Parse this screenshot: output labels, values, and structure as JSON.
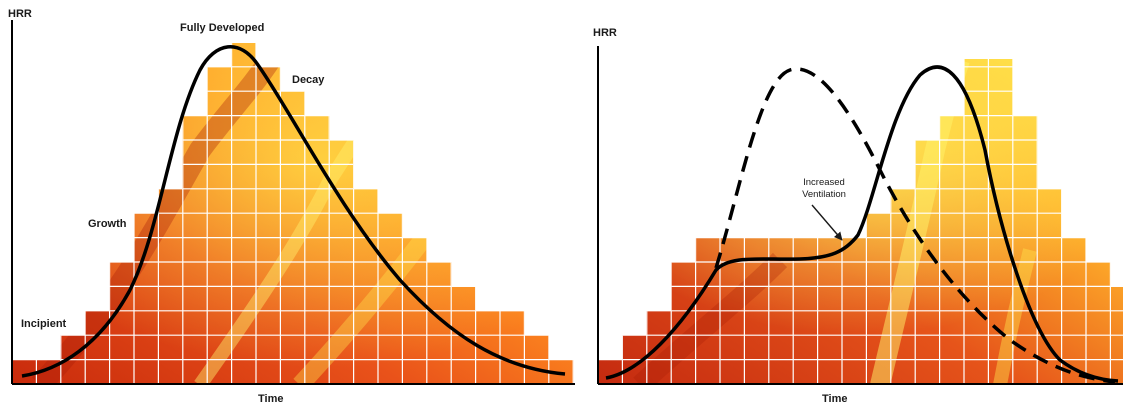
{
  "left_panel": {
    "y_axis_label": "HRR",
    "x_axis_label": "Time",
    "stages": {
      "incipient": "Incipient",
      "growth": "Growth",
      "fully_developed": "Fully Developed",
      "decay": "Decay"
    }
  },
  "right_panel": {
    "y_axis_label": "HRR",
    "x_axis_label": "Time",
    "annotation_line1": "Increased",
    "annotation_line2": "Ventilation"
  },
  "colors": {
    "fire_dark": "#b3200b",
    "fire_mid": "#e8520f",
    "fire_light": "#ffa21c",
    "fire_yellow": "#ffe23a",
    "grid": "#ffffff",
    "curve": "#000000"
  }
}
